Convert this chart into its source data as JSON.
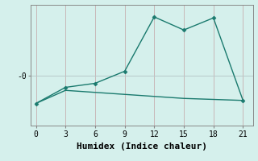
{
  "xlabel": "Humidex (Indice chaleur)",
  "background_color": "#d5f0ec",
  "line_color": "#1a7a6e",
  "grid_color_x": "#c8b8b8",
  "grid_color_y": "#b8c8c8",
  "x_ticks": [
    0,
    3,
    6,
    9,
    12,
    15,
    18,
    21
  ],
  "xlim": [
    -0.5,
    22
  ],
  "ylim": [
    -5,
    7
  ],
  "ytick_label": "-0",
  "ytick_value": 0.0,
  "line1_x": [
    0,
    3,
    6,
    9,
    12,
    15,
    18,
    21
  ],
  "line1_y": [
    -2.8,
    -1.2,
    -0.8,
    0.4,
    5.8,
    4.5,
    5.7,
    -2.5
  ],
  "line2_x": [
    0,
    3,
    6,
    9,
    12,
    15,
    18,
    21
  ],
  "line2_y": [
    -2.8,
    -1.5,
    -1.7,
    -1.9,
    -2.1,
    -2.3,
    -2.4,
    -2.5
  ],
  "marker_size": 2.5,
  "line_width": 1.0,
  "font_family": "monospace",
  "xlabel_fontsize": 8,
  "tick_fontsize": 7
}
